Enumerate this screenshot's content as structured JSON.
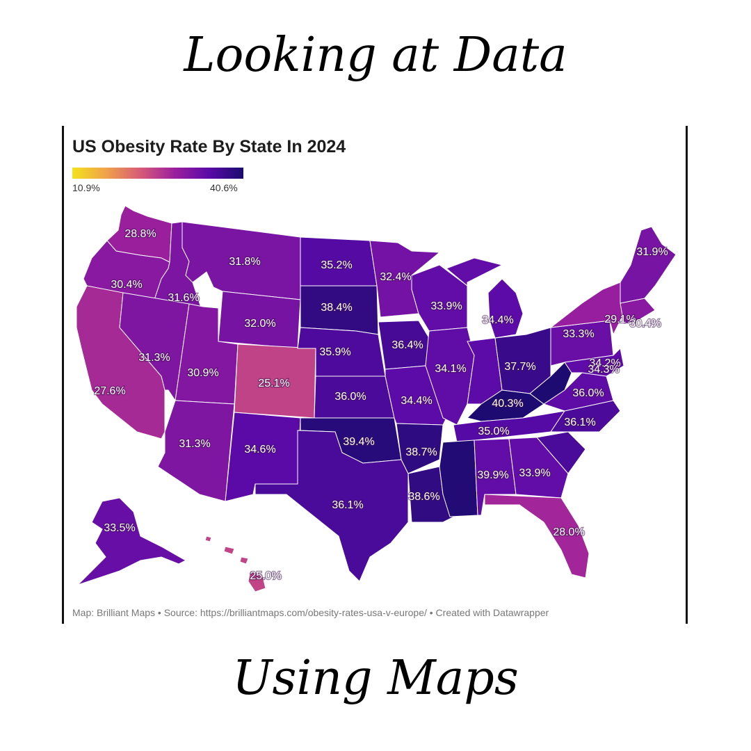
{
  "headline_top": "Looking at Data",
  "headline_bottom": "Using Maps",
  "map": {
    "title": "US Obesity Rate By State In 2024",
    "legend": {
      "min_label": "10.9%",
      "max_label": "40.6%",
      "min": 10.9,
      "max": 40.6
    },
    "credit": "Map: Brilliant Maps • Source: https://brilliantmaps.com/obesity-rates-usa-v-europe/ • Created with Datawrapper",
    "colors": {
      "low": "#f2e21c",
      "mid": "#d65a78",
      "high": "#1a0b6e",
      "border": "#ffffff"
    },
    "labels": [
      {
        "label": "28.8%",
        "value": 28.8
      },
      {
        "label": "30.4%",
        "value": 30.4
      },
      {
        "label": "27.6%",
        "value": 27.6
      },
      {
        "label": "31.8%",
        "value": 31.8
      },
      {
        "label": "31.6%",
        "value": 31.6
      },
      {
        "label": "32.0%",
        "value": 32.0
      },
      {
        "label": "31.3%",
        "value": 31.3
      },
      {
        "label": "30.9%",
        "value": 30.9
      },
      {
        "label": "25.1%",
        "value": 25.1
      },
      {
        "label": "31.3%",
        "value": 31.3
      },
      {
        "label": "34.6%",
        "value": 34.6
      },
      {
        "label": "35.2%",
        "value": 35.2
      },
      {
        "label": "38.4%",
        "value": 38.4
      },
      {
        "label": "35.9%",
        "value": 35.9
      },
      {
        "label": "36.0%",
        "value": 36.0
      },
      {
        "label": "39.4%",
        "value": 39.4
      },
      {
        "label": "36.1%",
        "value": 36.1
      },
      {
        "label": "32.4%",
        "value": 32.4
      },
      {
        "label": "36.4%",
        "value": 36.4
      },
      {
        "label": "34.4%",
        "value": 34.4
      },
      {
        "label": "38.7%",
        "value": 38.7
      },
      {
        "label": "38.6%",
        "value": 38.6
      },
      {
        "label": "33.9%",
        "value": 33.9
      },
      {
        "label": "34.1%",
        "value": 34.1
      },
      {
        "label": "34.4%",
        "value": 34.4
      },
      {
        "label": "37.7%",
        "value": 37.7
      },
      {
        "label": "40.3%",
        "value": 40.3
      },
      {
        "label": "35.0%",
        "value": 35.0
      },
      {
        "label": "39.9%",
        "value": 39.9
      },
      {
        "label": "33.9%",
        "value": 33.9
      },
      {
        "label": "28.0%",
        "value": 28.0
      },
      {
        "label": "36.1%",
        "value": 36.1
      },
      {
        "label": "36.0%",
        "value": 36.0
      },
      {
        "label": "34.2%",
        "value": 34.2
      },
      {
        "label": "33.3%",
        "value": 33.3
      },
      {
        "label": "34.3%",
        "value": 34.3
      },
      {
        "label": "29.1%",
        "value": 29.1
      },
      {
        "label": "30.4%",
        "value": 30.4
      },
      {
        "label": "31.9%",
        "value": 31.9
      },
      {
        "label": "33.5%",
        "value": 33.5
      },
      {
        "label": "25.0%",
        "value": 25.0
      }
    ]
  }
}
